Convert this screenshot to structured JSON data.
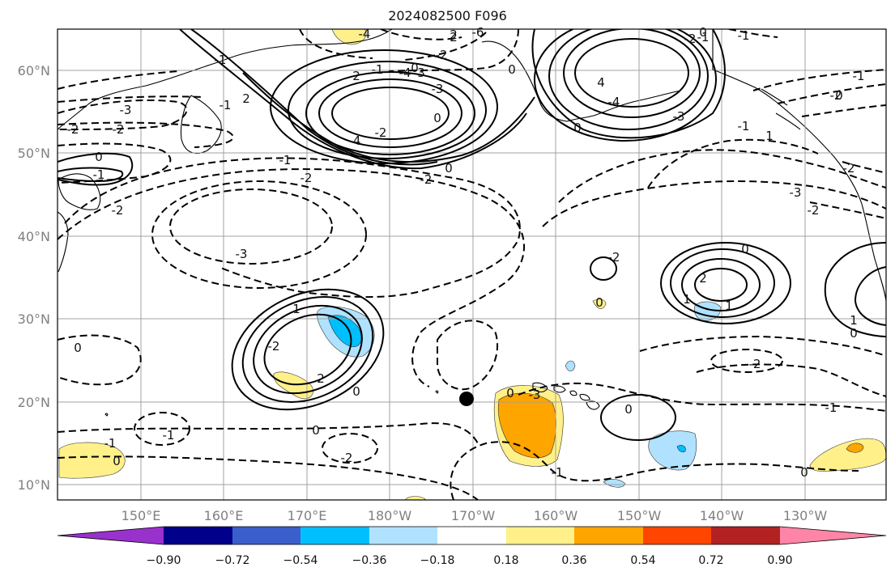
{
  "title": "2024082500 F096",
  "map": {
    "lat_labels": [
      "60°N",
      "50°N",
      "40°N",
      "30°N",
      "20°N",
      "10°N"
    ],
    "lon_labels": [
      "150°E",
      "160°E",
      "170°E",
      "180°W",
      "170°W",
      "160°W",
      "150°W",
      "140°W",
      "130°W"
    ],
    "contour_labels": [
      "-3",
      "-2",
      "-2",
      "-1",
      "-2",
      "-1",
      "-3",
      "-2",
      "-4",
      "-3",
      "-2",
      "2",
      "-1",
      "-1",
      "0",
      "0",
      "-3",
      "-4",
      "-1",
      "-2",
      "-3",
      "-2",
      "0",
      "0",
      "-1",
      "1",
      "0",
      "0",
      "0",
      "0",
      "0",
      "0",
      "-1",
      "-2",
      "-1",
      "-1",
      "-1",
      "-1",
      "1",
      "0",
      "0",
      "1",
      "1",
      "2",
      "0",
      "-2",
      "2",
      "-2",
      "-2",
      "-2",
      "0",
      "-2",
      "0",
      "2",
      "-4",
      "-6",
      "3",
      "-3",
      "0",
      "2",
      "-1",
      "2",
      "1",
      "4",
      "-2",
      "-4",
      "-2",
      "-1",
      "0",
      "0"
    ],
    "colorbar": {
      "ticks": [
        "−0.90",
        "−0.72",
        "−0.54",
        "−0.36",
        "−0.18",
        "0.18",
        "0.36",
        "0.54",
        "0.72",
        "0.90"
      ],
      "colors": [
        "#9932cc",
        "#00008b",
        "#3a5fcd",
        "#00bfff",
        "#b0e2ff",
        "#ffffff",
        "#fff08a",
        "#ffa500",
        "#ff4500",
        "#b22222",
        "#ff85a7"
      ]
    }
  }
}
